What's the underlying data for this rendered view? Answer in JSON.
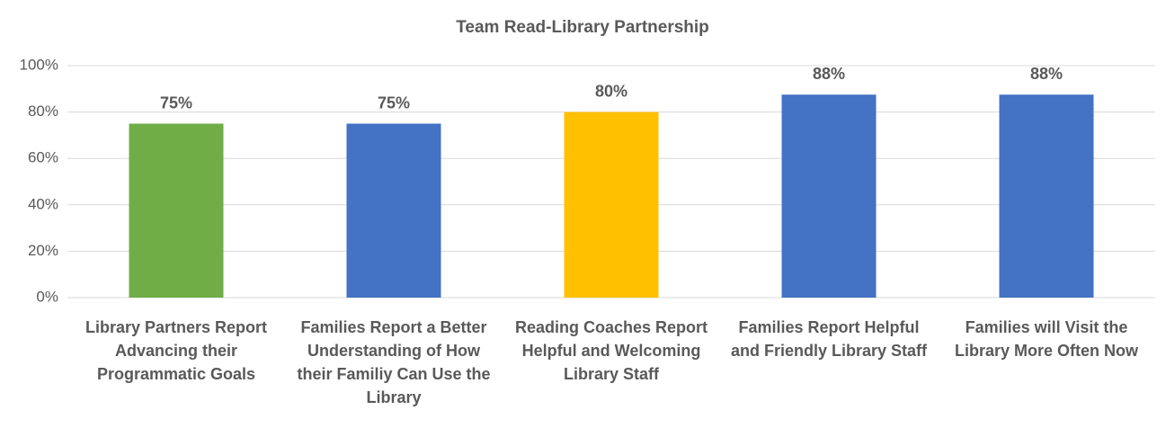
{
  "chart_data": {
    "type": "bar",
    "title": "Team Read-Library Partnership",
    "categories": [
      "Library Partners Report Advancing their Programmatic Goals",
      "Families Report a Better Understanding of How their Familiy Can Use the Library",
      "Reading Coaches Report Helpful and Welcoming Library Staff",
      "Families Report Helpful and Friendly Library Staff",
      "Families will Visit the Library More Often Now"
    ],
    "values": [
      75,
      75,
      80,
      87.5,
      87.5
    ],
    "value_labels": [
      "75%",
      "75%",
      "80%",
      "88%",
      "88%"
    ],
    "colors": [
      "#70ad47",
      "#4472c4",
      "#ffc000",
      "#4472c4",
      "#4472c4"
    ],
    "ylim": [
      0,
      100
    ],
    "yticks": [
      {
        "value": 0,
        "label": "0%"
      },
      {
        "value": 20,
        "label": "20%"
      },
      {
        "value": 40,
        "label": "40%"
      },
      {
        "value": 60,
        "label": "60%"
      },
      {
        "value": 80,
        "label": "80%"
      },
      {
        "value": 100,
        "label": "100%"
      }
    ],
    "grid": true
  }
}
